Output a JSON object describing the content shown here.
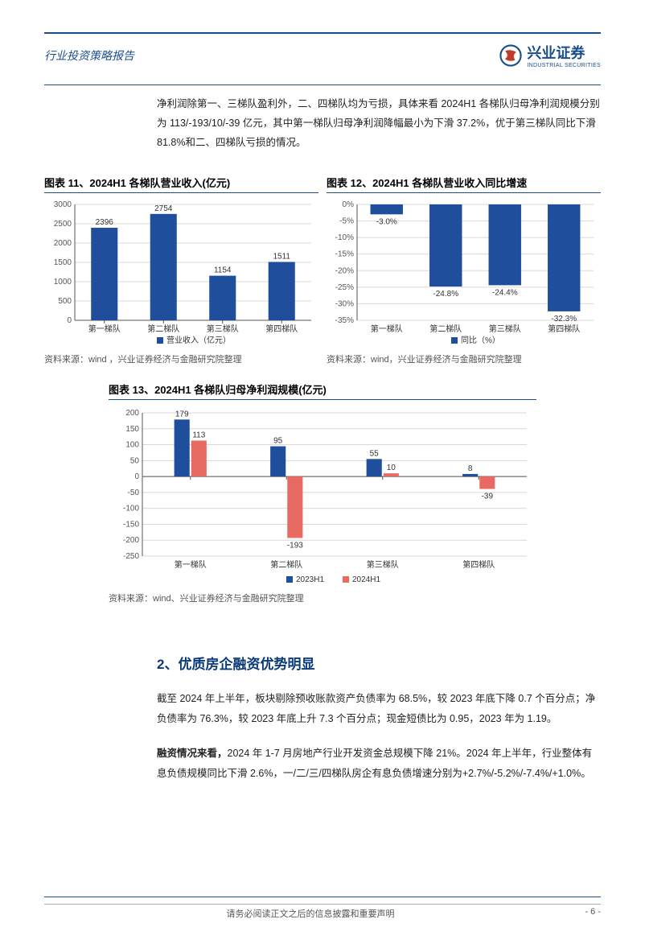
{
  "header": {
    "title": "行业投资策略报告",
    "brand_cn": "兴业证券",
    "brand_en": "INDUSTRIAL SECURITIES",
    "brand_color": "#1a4d8c",
    "accent_color": "#c23a2e"
  },
  "intro_text": "净利润除第一、三梯队盈利外，二、四梯队均为亏损，具体来看 2024H1 各梯队归母净利润规模分别为 113/-193/10/-39 亿元，其中第一梯队归母净利润降幅最小为下滑 37.2%，优于第三梯队同比下滑 81.8%和二、四梯队亏损的情况。",
  "chart11": {
    "type": "bar",
    "title": "图表 11、2024H1 各梯队营业收入(亿元)",
    "categories": [
      "第一梯队",
      "第二梯队",
      "第三梯队",
      "第四梯队"
    ],
    "values": [
      2396,
      2754,
      1154,
      1511
    ],
    "bar_color": "#1f4e9c",
    "legend": "营业收入（亿元）",
    "ylim": [
      0,
      3000
    ],
    "ytick_step": 500,
    "grid_color": "#d9d9d9",
    "background_color": "#ffffff",
    "axis_color": "#555555",
    "label_fontsize": 10,
    "bar_width": 0.45,
    "source": "资料来源：wind ，兴业证券经济与金融研究院整理"
  },
  "chart12": {
    "type": "bar",
    "title": "图表 12、2024H1 各梯队营业收入同比增速",
    "categories": [
      "第一梯队",
      "第二梯队",
      "第三梯队",
      "第四梯队"
    ],
    "values": [
      -3.0,
      -24.8,
      -24.4,
      -32.3
    ],
    "value_labels": [
      "-3.0%",
      "-24.8%",
      "-24.4%",
      "-32.3%"
    ],
    "bar_color": "#1f4e9c",
    "legend": "同比（%）",
    "ylim": [
      -35,
      0
    ],
    "ytick_step": 5,
    "ytick_labels": [
      "0%",
      "-5%",
      "-10%",
      "-15%",
      "-20%",
      "-25%",
      "-30%",
      "-35%"
    ],
    "grid_color": "#d9d9d9",
    "background_color": "#ffffff",
    "axis_color": "#555555",
    "label_fontsize": 10,
    "bar_width": 0.55,
    "source": "资料来源：wind，兴业证券经济与金融研究院整理"
  },
  "chart13": {
    "type": "grouped_bar",
    "title": "图表 13、2024H1 各梯队归母净利润规模(亿元)",
    "categories": [
      "第一梯队",
      "第二梯队",
      "第三梯队",
      "第四梯队"
    ],
    "series": [
      {
        "name": "2023H1",
        "color": "#1f4e9c",
        "values": [
          179,
          95,
          55,
          8
        ]
      },
      {
        "name": "2024H1",
        "color": "#e86b63",
        "values": [
          113,
          -193,
          10,
          -39
        ]
      }
    ],
    "ylim": [
      -250,
      200
    ],
    "ytick_step": 50,
    "grid_color": "#d9d9d9",
    "background_color": "#ffffff",
    "axis_color": "#555555",
    "label_fontsize": 10,
    "bar_width": 0.32,
    "source": "资料来源：wind、兴业证券经济与金融研究院整理"
  },
  "section2": {
    "title": "2、优质房企融资优势明显",
    "para1": "截至 2024 年上半年，板块剔除预收账款资产负债率为 68.5%，较 2023 年底下降 0.7 个百分点；净负债率为 76.3%，较 2023 年底上升 7.3 个百分点；现金短债比为 0.95，2023 年为 1.19。",
    "para2_bold": "融资情况来看，",
    "para2_rest": "2024 年 1-7 月房地产行业开发资金总规模下降 21%。2024 年上半年，行业整体有息负债规模同比下滑 2.6%，一/二/三/四梯队房企有息负债增速分别为+2.7%/-5.2%/-7.4%/+1.0%。"
  },
  "footer": {
    "disclaimer": "请务必阅读正文之后的信息披露和重要声明",
    "page": "- 6 -"
  }
}
